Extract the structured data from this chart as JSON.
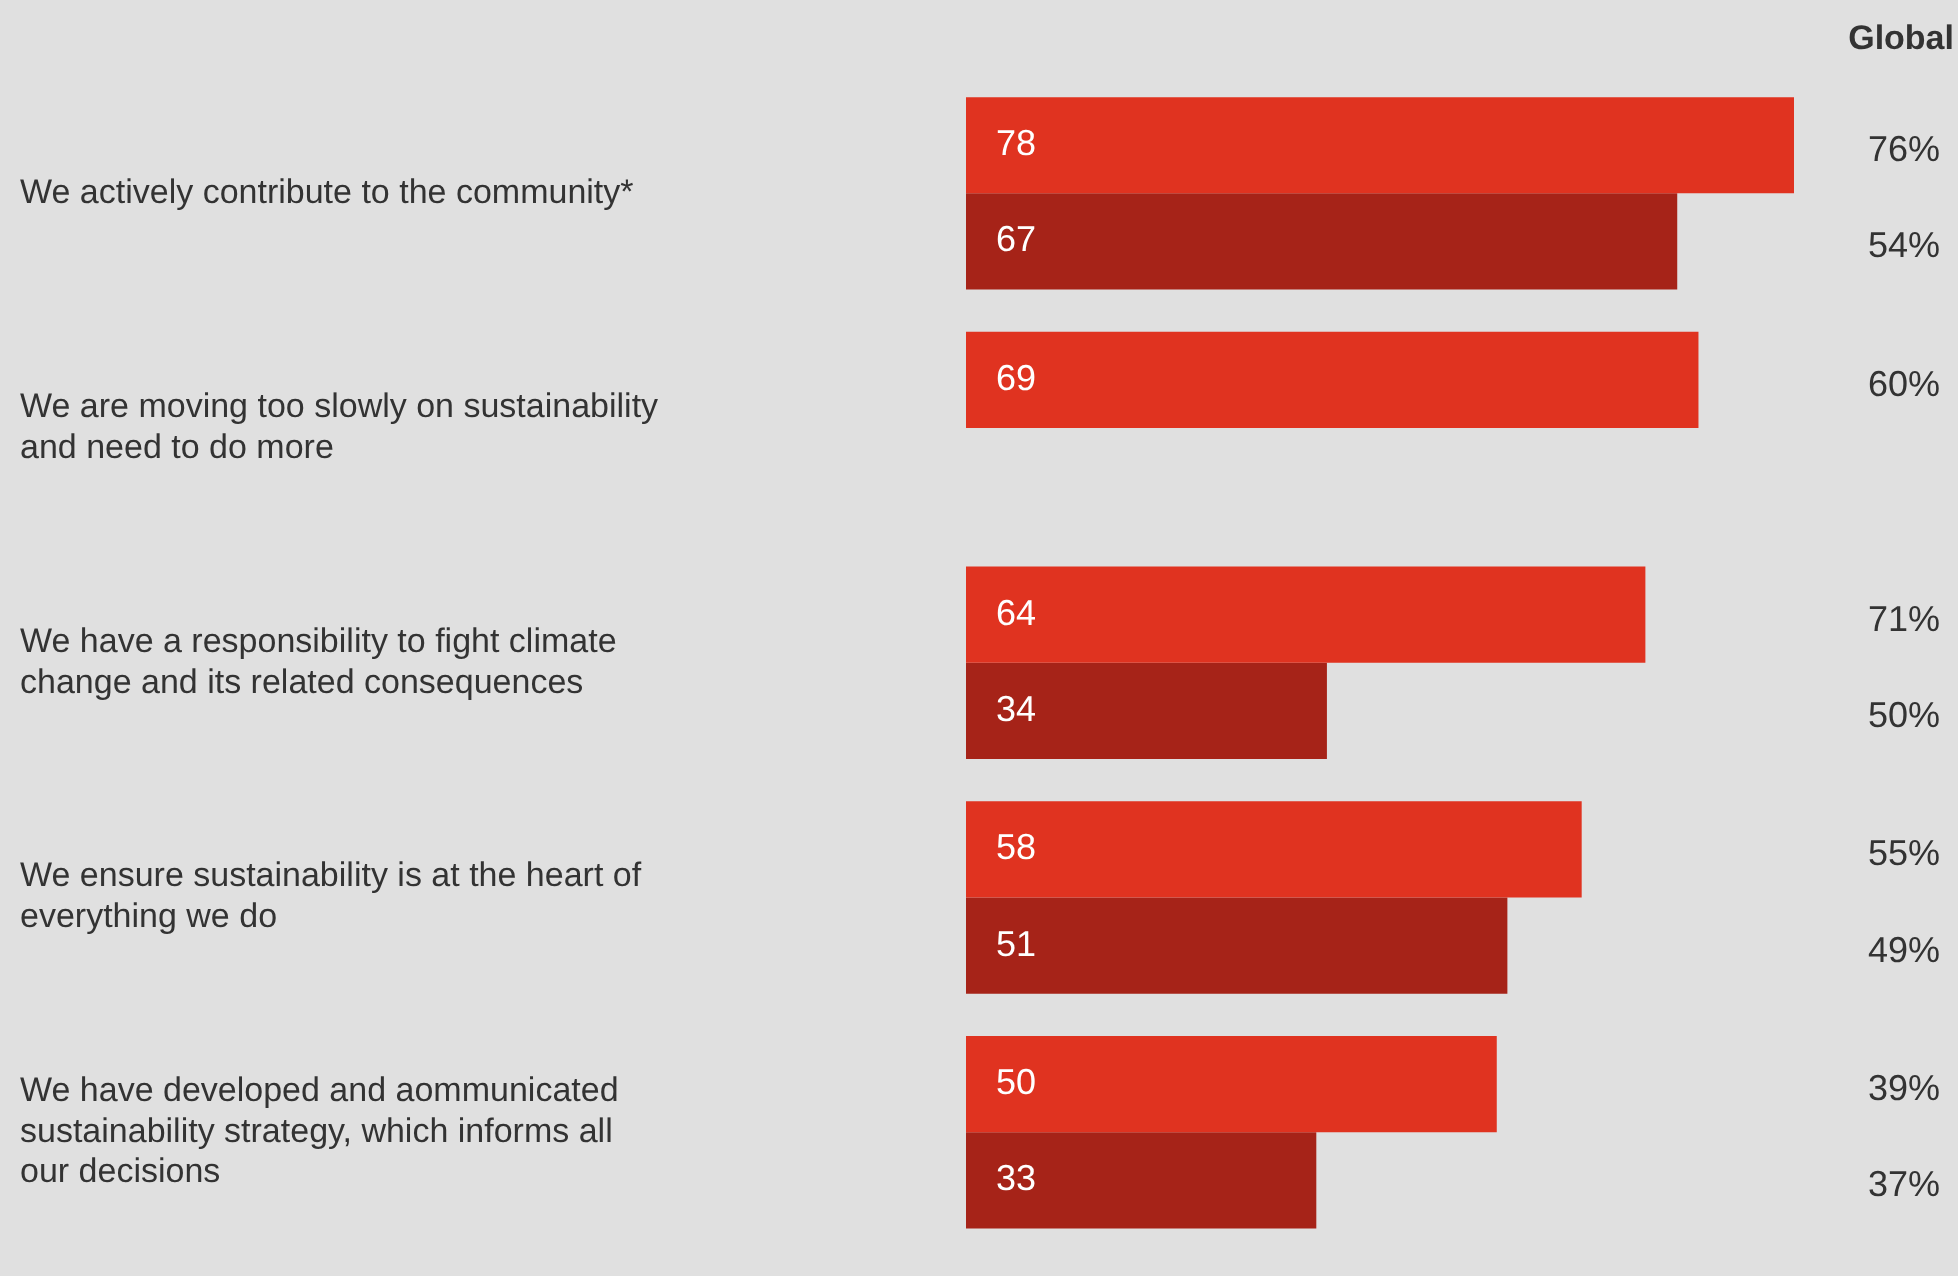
{
  "chart_data": {
    "type": "bar",
    "orientation": "horizontal",
    "categories": [
      "We actively contribute to the community*",
      "We are moving too slowly on sustainability and need to do more",
      "We have a responsibility to fight climate change and its related consequences",
      "We ensure sustainability is at the heart of everything we do",
      "We have developed and aommunicated sustainability strategy, which informs all our decisions"
    ],
    "series": [
      {
        "color": "#e03320",
        "values": [
          78,
          69,
          64,
          58,
          50
        ]
      },
      {
        "color": "#a62318",
        "values": [
          67,
          null,
          34,
          51,
          33
        ]
      }
    ],
    "xlim": [
      0,
      78
    ],
    "data_labels": true,
    "annotations": [
      "Global",
      "76%",
      "54%",
      "60%",
      "71%",
      "50%",
      "55%",
      "49%",
      "39%",
      "37%"
    ]
  }
}
